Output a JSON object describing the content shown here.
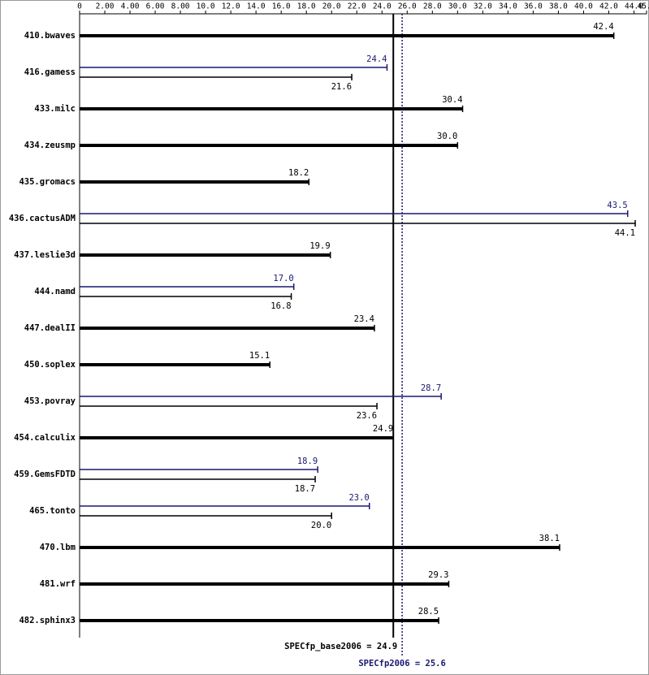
{
  "chart_data": {
    "type": "bar",
    "orientation": "horizontal",
    "categories": [
      "410.bwaves",
      "416.gamess",
      "433.milc",
      "434.zeusmp",
      "435.gromacs",
      "436.cactusADM",
      "437.leslie3d",
      "444.namd",
      "447.dealII",
      "450.soplex",
      "453.povray",
      "454.calculix",
      "459.GemsFDTD",
      "465.tonto",
      "470.lbm",
      "481.wrf",
      "482.sphinx3"
    ],
    "series": [
      {
        "color": "#000000",
        "values": [
          42.4,
          21.6,
          30.4,
          30.0,
          18.2,
          44.1,
          19.9,
          16.8,
          23.4,
          15.1,
          23.6,
          24.9,
          18.7,
          20.0,
          38.1,
          29.3,
          28.5
        ],
        "value_labels": [
          "42.4",
          "21.6",
          "30.4",
          "30.0",
          "18.2",
          "44.1",
          "19.9",
          "16.8",
          "23.4",
          "15.1",
          "23.6",
          "24.9",
          "18.7",
          "20.0",
          "38.1",
          "29.3",
          "28.5"
        ]
      },
      {
        "color": "#191970",
        "values": [
          null,
          24.4,
          null,
          null,
          null,
          43.5,
          null,
          17.0,
          null,
          null,
          28.7,
          null,
          18.9,
          23.0,
          null,
          null,
          null
        ],
        "value_labels": [
          null,
          "24.4",
          null,
          null,
          null,
          "43.5",
          null,
          "17.0",
          null,
          null,
          "28.7",
          null,
          "18.9",
          "23.0",
          null,
          null,
          null
        ]
      }
    ],
    "xlim": [
      0,
      45
    ],
    "xticks": [
      0,
      {
        "value": 2,
        "label": "2.00"
      },
      {
        "value": 4,
        "label": "4.00"
      },
      {
        "value": 6,
        "label": "6.00"
      },
      {
        "value": 8,
        "label": "8.00"
      },
      {
        "value": 10,
        "label": "10.0"
      },
      {
        "value": 12,
        "label": "12.0"
      },
      {
        "value": 14,
        "label": "14.0"
      },
      {
        "value": 16,
        "label": "16.0"
      },
      {
        "value": 18,
        "label": "18.0"
      },
      {
        "value": 20,
        "label": "20.0"
      },
      {
        "value": 22,
        "label": "22.0"
      },
      {
        "value": 24,
        "label": "24.0"
      },
      {
        "value": 26,
        "label": "26.0"
      },
      {
        "value": 28,
        "label": "28.0"
      },
      {
        "value": 30,
        "label": "30.0"
      },
      {
        "value": 32,
        "label": "32.0"
      },
      {
        "value": 34,
        "label": "34.0"
      },
      {
        "value": 36,
        "label": "36.0"
      },
      {
        "value": 38,
        "label": "38.0"
      },
      {
        "value": 40,
        "label": "40.0"
      },
      {
        "value": 42,
        "label": "42.0"
      },
      {
        "value": 44,
        "label": "44.0"
      },
      {
        "value": 45,
        "label": "45.0"
      }
    ],
    "reference_lines": [
      {
        "value": 24.9,
        "label": "SPECfp_base2006 = 24.9",
        "color": "#000000",
        "style": "solid"
      },
      {
        "value": 25.6,
        "label": "SPECfp2006 = 25.6",
        "color": "#191970",
        "style": "dotted"
      }
    ]
  }
}
